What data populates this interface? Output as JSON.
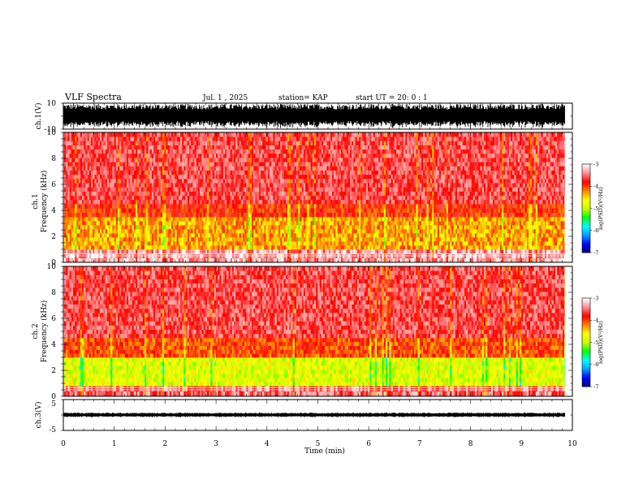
{
  "header": {
    "title": "VLF Spectra",
    "date": "Jul.  1 , 2025",
    "station": "station= KAP",
    "start": "start  UT  =   20: 0  : 1"
  },
  "chart_data": [
    {
      "id": "ch1-waveform",
      "type": "line",
      "ylabel": "ch.1(V)",
      "ylim": [
        -10,
        10
      ],
      "yticks": [
        "10",
        "-10"
      ],
      "xlim": [
        0,
        10
      ],
      "series": [
        {
          "description": "dense amplitude trace saturating near ±10 V",
          "amplitude": 10
        }
      ]
    },
    {
      "id": "ch1-spectrogram",
      "type": "heatmap",
      "ylabel": "ch.1\nFrequency (kHz)",
      "ylim": [
        0,
        10
      ],
      "yticks": [
        "0",
        "2",
        "4",
        "6",
        "8",
        "10"
      ],
      "xlim": [
        0,
        10
      ],
      "colorbar": {
        "label": "log(PSD)(V²/Hz)",
        "range": [
          -7,
          -3
        ],
        "ticks": [
          "-3",
          "-4",
          "-5",
          "-6",
          "-7"
        ]
      },
      "bands": [
        {
          "from": 0,
          "to": 1.0,
          "log_psd": -3.3
        },
        {
          "from": 1.0,
          "to": 3.5,
          "log_psd": -4.3
        },
        {
          "from": 3.5,
          "to": 4.5,
          "log_psd": -3.9
        },
        {
          "from": 4.5,
          "to": 10,
          "log_psd": -3.3
        }
      ]
    },
    {
      "id": "ch2-spectrogram",
      "type": "heatmap",
      "ylabel": "ch.2\nFrequency (kHz)",
      "ylim": [
        0,
        10
      ],
      "yticks": [
        "0",
        "2",
        "4",
        "6",
        "8",
        "10"
      ],
      "xlim": [
        0,
        10
      ],
      "colorbar": {
        "label": "log(PSD)(V²/Hz)",
        "range": [
          -7,
          -3
        ],
        "ticks": [
          "-3",
          "-4",
          "-5",
          "-6",
          "-7"
        ]
      },
      "bands": [
        {
          "from": 0,
          "to": 0.8,
          "log_psd": -3.5
        },
        {
          "from": 0.8,
          "to": 3.0,
          "log_psd": -4.8
        },
        {
          "from": 3.0,
          "to": 4.5,
          "log_psd": -4.0
        },
        {
          "from": 4.5,
          "to": 10,
          "log_psd": -3.3
        }
      ]
    },
    {
      "id": "ch3-waveform",
      "type": "line",
      "ylabel": "ch.3(V)",
      "ylim": [
        -5,
        5
      ],
      "yticks": [
        "5",
        "-5"
      ],
      "xlim": [
        0,
        10
      ],
      "series": [
        {
          "description": "narrow trace around 0 V",
          "amplitude": 0.8
        }
      ]
    }
  ],
  "xaxis": {
    "label": "Time (min)",
    "ticks": [
      "0",
      "1",
      "2",
      "3",
      "4",
      "5",
      "6",
      "7",
      "8",
      "9",
      "10"
    ],
    "data_end": 9.85
  },
  "colors": {
    "colormap": [
      "#00007a",
      "#0000ff",
      "#00a0ff",
      "#00ffff",
      "#00ff00",
      "#c8ff00",
      "#ffff00",
      "#ff8000",
      "#ff0000",
      "#ff9090",
      "#ffffff"
    ]
  }
}
